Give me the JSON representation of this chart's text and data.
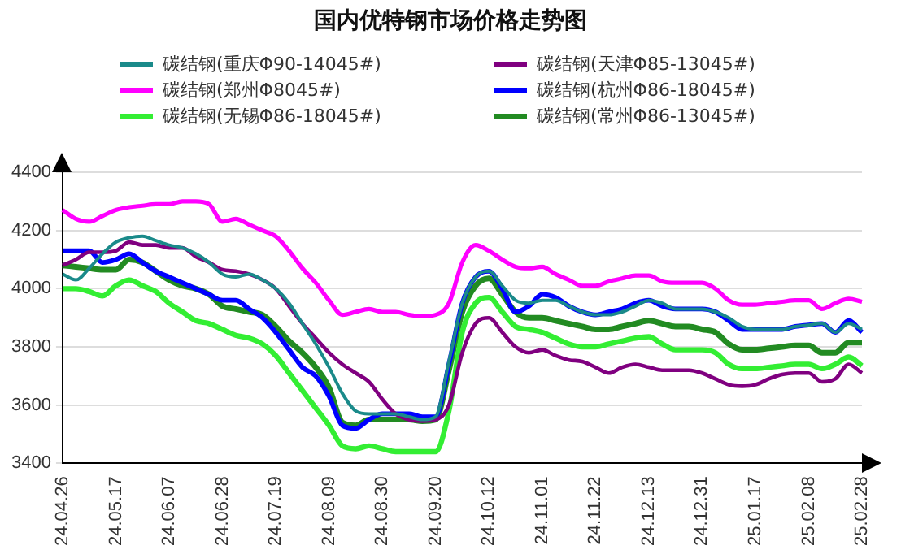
{
  "chart_data": {
    "type": "line",
    "title": "国内优特钢市场价格走势图",
    "categories": [
      "24.04.26",
      null,
      null,
      null,
      "24.05.17",
      null,
      null,
      null,
      "24.06.07",
      null,
      null,
      null,
      "24.06.28",
      null,
      null,
      null,
      "24.07.19",
      null,
      null,
      null,
      "24.08.09",
      null,
      null,
      null,
      "24.08.30",
      null,
      null,
      null,
      "24.09.20",
      null,
      null,
      null,
      "24.10.12",
      null,
      null,
      null,
      "24.11.01",
      null,
      null,
      null,
      "24.11.22",
      null,
      null,
      null,
      "24.12.13",
      null,
      null,
      null,
      "24.12.31",
      null,
      null,
      null,
      "25.01.17",
      null,
      null,
      null,
      "25.02.08",
      null,
      null,
      null,
      "25.02.28"
    ],
    "series": [
      {
        "name": "碳结钢(重庆Φ90-14045#)",
        "color": "#1a8a8a",
        "values": [
          4050,
          4030,
          4070,
          4120,
          4160,
          4175,
          4180,
          4165,
          4150,
          4140,
          4120,
          4090,
          4050,
          4040,
          4050,
          4030,
          4000,
          3950,
          3880,
          3810,
          3730,
          3640,
          3580,
          3570,
          3570,
          3570,
          3560,
          3550,
          3560,
          3750,
          3950,
          4040,
          4060,
          4010,
          3960,
          3950,
          3960,
          3960,
          3940,
          3920,
          3910,
          3910,
          3920,
          3940,
          3960,
          3950,
          3930,
          3930,
          3930,
          3920,
          3900,
          3870,
          3860,
          3860,
          3860,
          3870,
          3875,
          3880,
          3850,
          3880,
          3860
        ]
      },
      {
        "name": "碳结钢(天津Φ85-13045#)",
        "color": "#800080",
        "values": [
          4080,
          4100,
          4125,
          4125,
          4130,
          4160,
          4150,
          4150,
          4140,
          4140,
          4110,
          4090,
          4065,
          4060,
          4050,
          4030,
          4000,
          3940,
          3880,
          3830,
          3780,
          3740,
          3710,
          3680,
          3620,
          3570,
          3550,
          3545,
          3550,
          3600,
          3780,
          3880,
          3900,
          3850,
          3800,
          3780,
          3790,
          3770,
          3755,
          3750,
          3730,
          3710,
          3730,
          3740,
          3730,
          3720,
          3720,
          3720,
          3710,
          3690,
          3670,
          3665,
          3670,
          3690,
          3705,
          3710,
          3710,
          3680,
          3690,
          3740,
          3710
        ]
      },
      {
        "name": "碳结钢(郑州Φ8045#)",
        "color": "#ff00ff",
        "values": [
          4270,
          4240,
          4230,
          4250,
          4270,
          4280,
          4285,
          4290,
          4290,
          4300,
          4300,
          4290,
          4230,
          4240,
          4220,
          4200,
          4180,
          4130,
          4070,
          4020,
          3960,
          3910,
          3920,
          3930,
          3920,
          3920,
          3910,
          3905,
          3910,
          3950,
          4090,
          4150,
          4130,
          4100,
          4075,
          4070,
          4075,
          4050,
          4030,
          4010,
          4010,
          4025,
          4035,
          4045,
          4045,
          4025,
          4020,
          4020,
          4020,
          4000,
          3960,
          3945,
          3945,
          3950,
          3955,
          3960,
          3960,
          3930,
          3950,
          3965,
          3955
        ]
      },
      {
        "name": "碳结钢(杭州Φ86-18045#)",
        "color": "#0000ff",
        "values": [
          4130,
          4130,
          4130,
          4090,
          4100,
          4120,
          4090,
          4060,
          4040,
          4020,
          4000,
          3980,
          3960,
          3960,
          3930,
          3900,
          3850,
          3790,
          3730,
          3700,
          3630,
          3530,
          3520,
          3550,
          3570,
          3570,
          3570,
          3560,
          3560,
          3740,
          3950,
          4040,
          4060,
          4000,
          3920,
          3940,
          3980,
          3970,
          3940,
          3920,
          3910,
          3920,
          3930,
          3950,
          3960,
          3940,
          3930,
          3930,
          3930,
          3920,
          3890,
          3860,
          3860,
          3860,
          3860,
          3870,
          3875,
          3880,
          3850,
          3890,
          3850
        ]
      },
      {
        "name": "碳结钢(无锡Φ86-18045#)",
        "color": "#33ee33",
        "values": [
          4000,
          4000,
          3990,
          3975,
          4010,
          4030,
          4010,
          3990,
          3950,
          3920,
          3890,
          3880,
          3860,
          3840,
          3830,
          3810,
          3770,
          3710,
          3650,
          3590,
          3530,
          3460,
          3450,
          3460,
          3450,
          3440,
          3440,
          3440,
          3440,
          3580,
          3850,
          3950,
          3970,
          3920,
          3870,
          3860,
          3850,
          3830,
          3810,
          3800,
          3800,
          3810,
          3820,
          3830,
          3835,
          3810,
          3790,
          3790,
          3790,
          3780,
          3740,
          3725,
          3725,
          3730,
          3735,
          3740,
          3740,
          3725,
          3740,
          3765,
          3735
        ]
      },
      {
        "name": "碳结钢(常州Φ86-13045#)",
        "color": "#228b22",
        "values": [
          4080,
          4075,
          4070,
          4065,
          4065,
          4100,
          4090,
          4060,
          4030,
          4010,
          4000,
          3980,
          3940,
          3930,
          3920,
          3910,
          3870,
          3820,
          3780,
          3730,
          3660,
          3540,
          3530,
          3550,
          3550,
          3550,
          3550,
          3545,
          3550,
          3720,
          3920,
          4010,
          4035,
          3980,
          3920,
          3900,
          3900,
          3890,
          3880,
          3870,
          3860,
          3860,
          3870,
          3880,
          3890,
          3880,
          3870,
          3870,
          3860,
          3850,
          3810,
          3790,
          3790,
          3795,
          3800,
          3805,
          3805,
          3780,
          3780,
          3815,
          3815
        ]
      }
    ],
    "ylim": [
      3400,
      4400
    ],
    "yticks": [
      3400,
      3600,
      3800,
      4000,
      4200,
      4400
    ],
    "grid": "y",
    "legend": "top",
    "marker": "none",
    "line_style": "solid"
  }
}
